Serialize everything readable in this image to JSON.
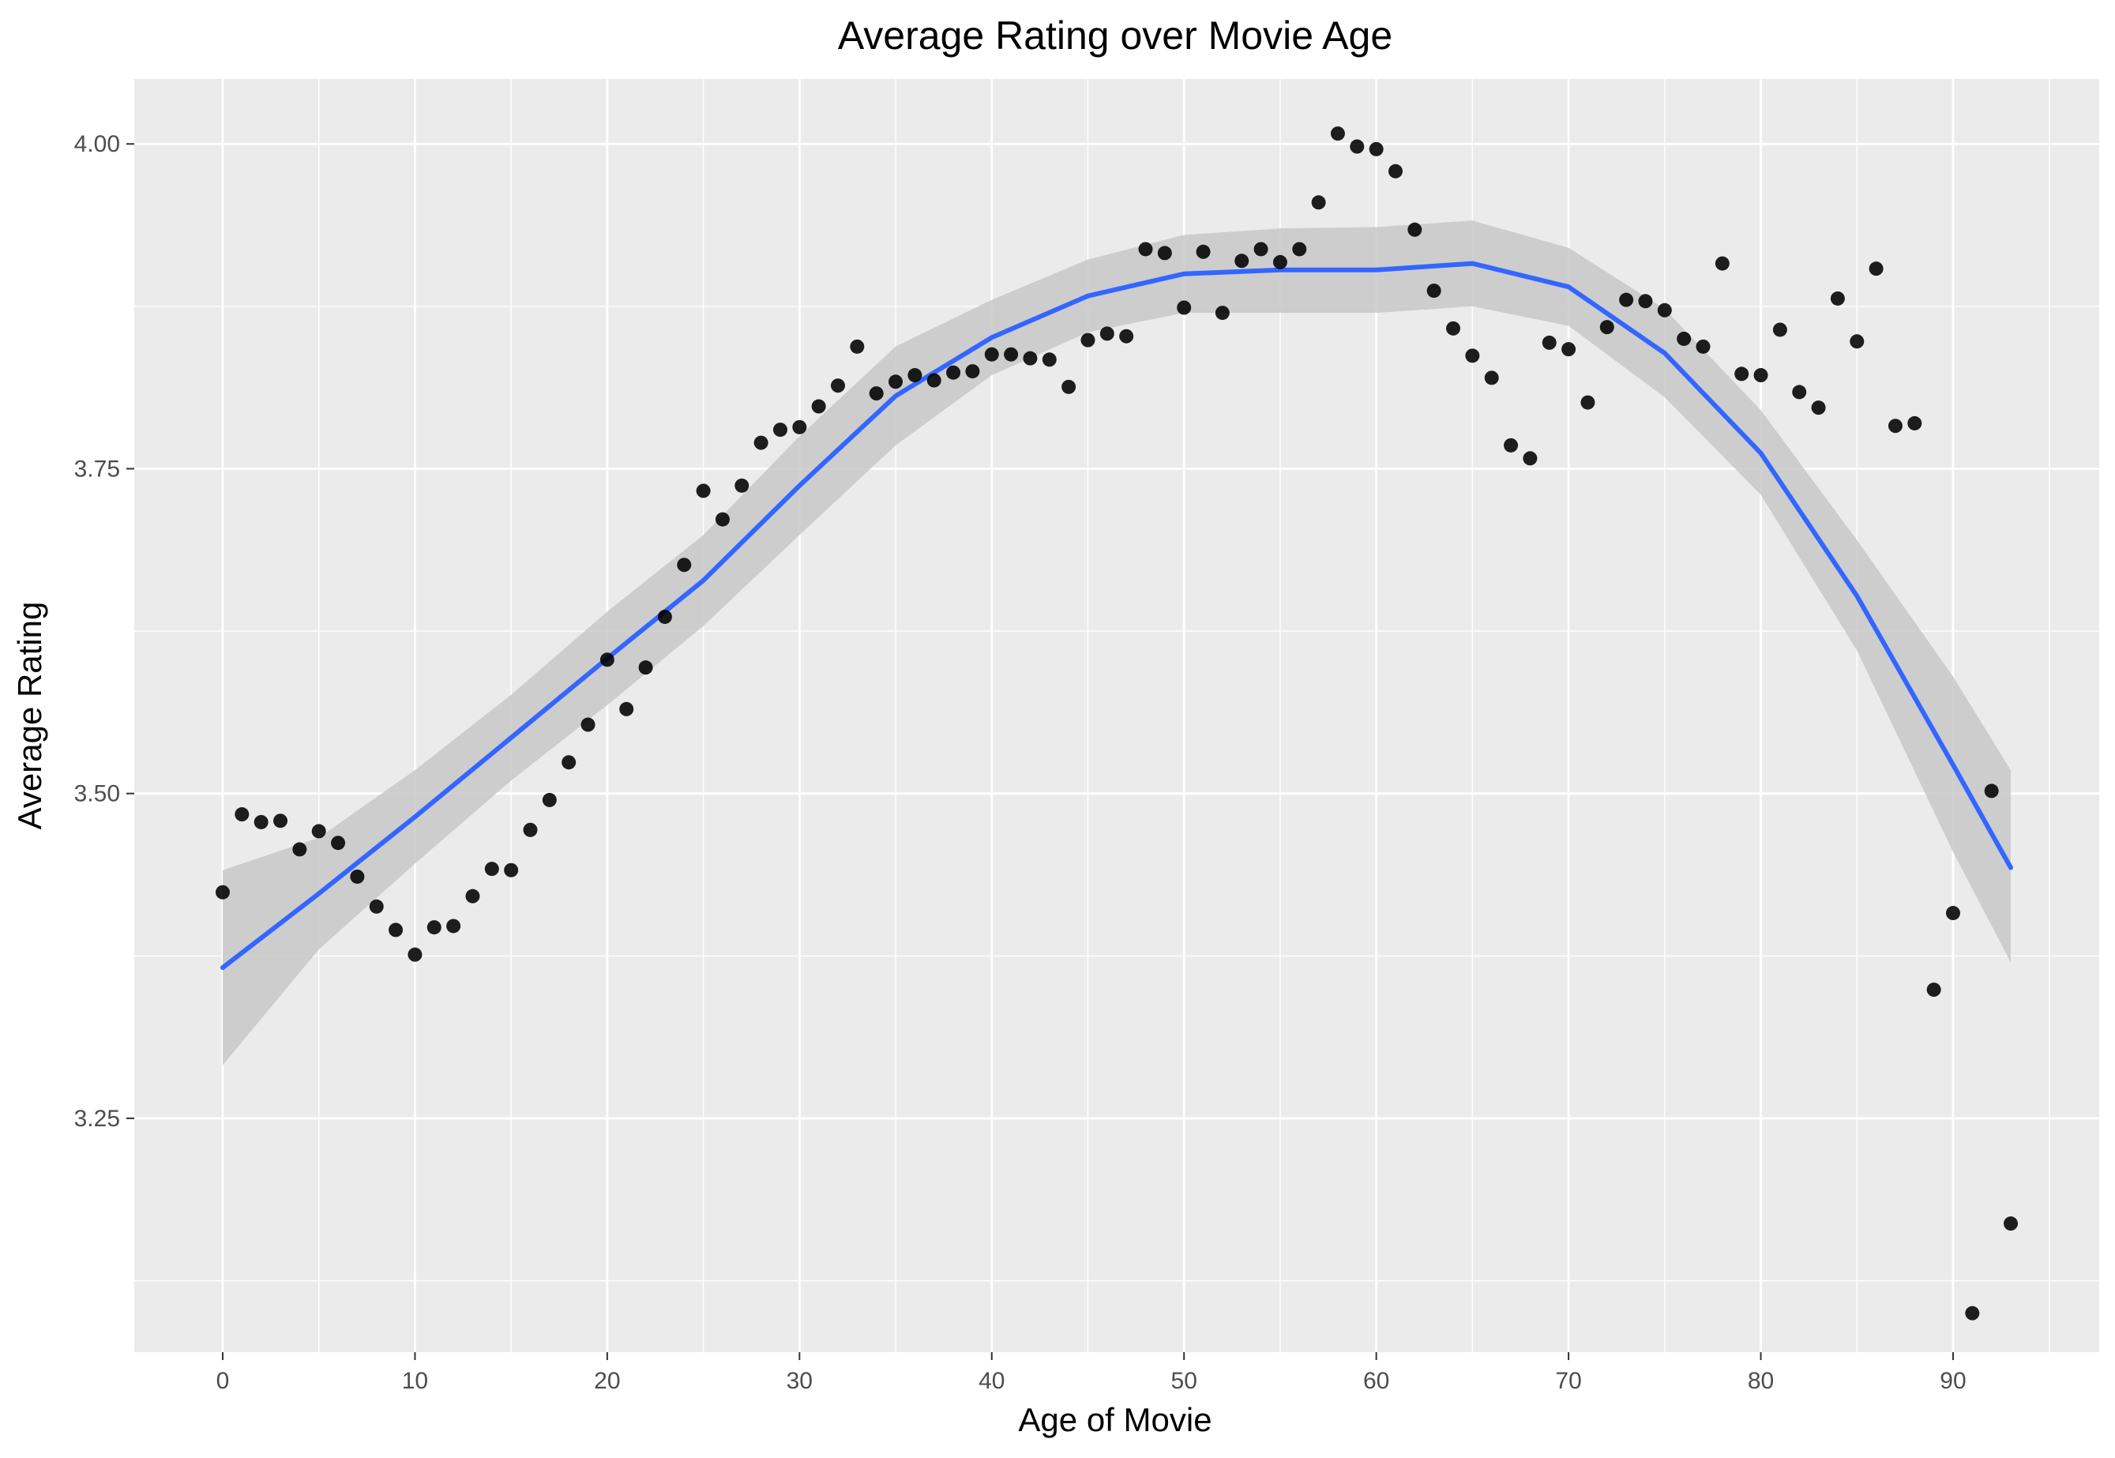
{
  "chart_data": {
    "type": "scatter",
    "title": "Average Rating over Movie Age",
    "xlabel": "Age of Movie",
    "ylabel": "Average Rating",
    "xlim": [
      -4.6,
      97.6
    ],
    "ylim": [
      3.07,
      4.05
    ],
    "x_ticks": [
      0,
      10,
      20,
      30,
      40,
      50,
      60,
      70,
      80,
      90
    ],
    "x_tick_labels": [
      "0",
      "10",
      "20",
      "30",
      "40",
      "50",
      "60",
      "70",
      "80",
      "90"
    ],
    "y_ticks": [
      3.25,
      3.5,
      3.75,
      4.0
    ],
    "y_tick_labels": [
      "3.25",
      "3.50",
      "3.75",
      "4.00"
    ],
    "grid": true,
    "colors": {
      "panel": "#ebebeb",
      "grid": "#ffffff",
      "points": "#000000",
      "smooth_line": "#3366ff",
      "confidence_band": "#c8c8c8"
    },
    "points": [
      {
        "x": 0,
        "y": 3.424
      },
      {
        "x": 1,
        "y": 3.484
      },
      {
        "x": 2,
        "y": 3.478
      },
      {
        "x": 3,
        "y": 3.479
      },
      {
        "x": 4,
        "y": 3.457
      },
      {
        "x": 5,
        "y": 3.471
      },
      {
        "x": 6,
        "y": 3.462
      },
      {
        "x": 7,
        "y": 3.436
      },
      {
        "x": 8,
        "y": 3.413
      },
      {
        "x": 9,
        "y": 3.395
      },
      {
        "x": 10,
        "y": 3.376
      },
      {
        "x": 11,
        "y": 3.397
      },
      {
        "x": 12,
        "y": 3.398
      },
      {
        "x": 13,
        "y": 3.421
      },
      {
        "x": 14,
        "y": 3.442
      },
      {
        "x": 15,
        "y": 3.441
      },
      {
        "x": 16,
        "y": 3.472
      },
      {
        "x": 17,
        "y": 3.495
      },
      {
        "x": 18,
        "y": 3.524
      },
      {
        "x": 19,
        "y": 3.553
      },
      {
        "x": 20,
        "y": 3.603
      },
      {
        "x": 21,
        "y": 3.565
      },
      {
        "x": 22,
        "y": 3.597
      },
      {
        "x": 23,
        "y": 3.636
      },
      {
        "x": 24,
        "y": 3.676
      },
      {
        "x": 25,
        "y": 3.733
      },
      {
        "x": 26,
        "y": 3.711
      },
      {
        "x": 27,
        "y": 3.737
      },
      {
        "x": 28,
        "y": 3.77
      },
      {
        "x": 29,
        "y": 3.78
      },
      {
        "x": 30,
        "y": 3.782
      },
      {
        "x": 31,
        "y": 3.798
      },
      {
        "x": 32,
        "y": 3.814
      },
      {
        "x": 33,
        "y": 3.844
      },
      {
        "x": 34,
        "y": 3.808
      },
      {
        "x": 35,
        "y": 3.817
      },
      {
        "x": 36,
        "y": 3.822
      },
      {
        "x": 37,
        "y": 3.818
      },
      {
        "x": 38,
        "y": 3.824
      },
      {
        "x": 39,
        "y": 3.825
      },
      {
        "x": 40,
        "y": 3.838
      },
      {
        "x": 41,
        "y": 3.838
      },
      {
        "x": 42,
        "y": 3.835
      },
      {
        "x": 43,
        "y": 3.834
      },
      {
        "x": 44,
        "y": 3.813
      },
      {
        "x": 45,
        "y": 3.849
      },
      {
        "x": 46,
        "y": 3.854
      },
      {
        "x": 47,
        "y": 3.852
      },
      {
        "x": 48,
        "y": 3.919
      },
      {
        "x": 49,
        "y": 3.916
      },
      {
        "x": 50,
        "y": 3.874
      },
      {
        "x": 51,
        "y": 3.917
      },
      {
        "x": 52,
        "y": 3.87
      },
      {
        "x": 53,
        "y": 3.91
      },
      {
        "x": 54,
        "y": 3.919
      },
      {
        "x": 55,
        "y": 3.909
      },
      {
        "x": 56,
        "y": 3.919
      },
      {
        "x": 57,
        "y": 3.955
      },
      {
        "x": 58,
        "y": 4.008
      },
      {
        "x": 59,
        "y": 3.998
      },
      {
        "x": 60,
        "y": 3.996
      },
      {
        "x": 61,
        "y": 3.979
      },
      {
        "x": 62,
        "y": 3.934
      },
      {
        "x": 63,
        "y": 3.887
      },
      {
        "x": 64,
        "y": 3.858
      },
      {
        "x": 65,
        "y": 3.837
      },
      {
        "x": 66,
        "y": 3.82
      },
      {
        "x": 67,
        "y": 3.768
      },
      {
        "x": 68,
        "y": 3.758
      },
      {
        "x": 69,
        "y": 3.847
      },
      {
        "x": 70,
        "y": 3.842
      },
      {
        "x": 71,
        "y": 3.801
      },
      {
        "x": 72,
        "y": 3.859
      },
      {
        "x": 73,
        "y": 3.88
      },
      {
        "x": 74,
        "y": 3.879
      },
      {
        "x": 75,
        "y": 3.872
      },
      {
        "x": 76,
        "y": 3.85
      },
      {
        "x": 77,
        "y": 3.844
      },
      {
        "x": 78,
        "y": 3.908
      },
      {
        "x": 79,
        "y": 3.823
      },
      {
        "x": 80,
        "y": 3.822
      },
      {
        "x": 81,
        "y": 3.857
      },
      {
        "x": 82,
        "y": 3.809
      },
      {
        "x": 83,
        "y": 3.797
      },
      {
        "x": 84,
        "y": 3.881
      },
      {
        "x": 85,
        "y": 3.848
      },
      {
        "x": 86,
        "y": 3.904
      },
      {
        "x": 87,
        "y": 3.783
      },
      {
        "x": 88,
        "y": 3.785
      },
      {
        "x": 89,
        "y": 3.349
      },
      {
        "x": 90,
        "y": 3.408
      },
      {
        "x": 91,
        "y": 3.1
      },
      {
        "x": 92,
        "y": 3.502
      },
      {
        "x": 93,
        "y": 3.169
      }
    ],
    "smooth": {
      "x": [
        0,
        5,
        10,
        15,
        20,
        25,
        30,
        35,
        40,
        45,
        50,
        55,
        60,
        65,
        70,
        75,
        80,
        85,
        90,
        93
      ],
      "y": [
        3.366,
        3.423,
        3.482,
        3.543,
        3.604,
        3.664,
        3.737,
        3.806,
        3.851,
        3.883,
        3.9,
        3.903,
        3.903,
        3.908,
        3.89,
        3.839,
        3.762,
        3.652,
        3.522,
        3.443
      ],
      "lower": [
        3.291,
        3.38,
        3.446,
        3.51,
        3.568,
        3.629,
        3.699,
        3.768,
        3.822,
        3.855,
        3.87,
        3.87,
        3.87,
        3.875,
        3.86,
        3.805,
        3.73,
        3.61,
        3.455,
        3.37
      ],
      "upper": [
        3.441,
        3.466,
        3.518,
        3.576,
        3.64,
        3.699,
        3.775,
        3.844,
        3.88,
        3.911,
        3.93,
        3.935,
        3.936,
        3.941,
        3.92,
        3.873,
        3.795,
        3.695,
        3.59,
        3.518
      ]
    }
  }
}
